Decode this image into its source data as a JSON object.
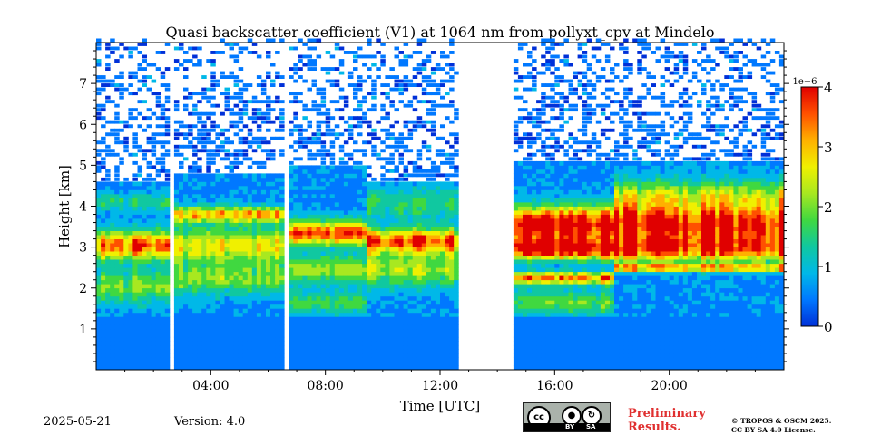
{
  "chart_data": {
    "type": "heatmap",
    "title": "Quasi backscatter coefficient (V1) at 1064 nm from pollyxt_cpv at Mindelo",
    "xlabel": "Time [UTC]",
    "ylabel": "Height [km]",
    "xlim_hours": [
      0,
      24
    ],
    "ylim_km": [
      0,
      8
    ],
    "x_ticks": [
      {
        "value": 4,
        "label": "04:00"
      },
      {
        "value": 8,
        "label": "08:00"
      },
      {
        "value": 12,
        "label": "12:00"
      },
      {
        "value": 16,
        "label": "16:00"
      },
      {
        "value": 20,
        "label": "20:00"
      }
    ],
    "y_ticks": [
      {
        "value": 1,
        "label": "1"
      },
      {
        "value": 2,
        "label": "2"
      },
      {
        "value": 3,
        "label": "3"
      },
      {
        "value": 4,
        "label": "4"
      },
      {
        "value": 5,
        "label": "5"
      },
      {
        "value": 6,
        "label": "6"
      },
      {
        "value": 7,
        "label": "7"
      }
    ],
    "colorbar": {
      "range": [
        0,
        4
      ],
      "multiplier": "1e−6",
      "ticks": [
        {
          "value": 0,
          "label": "0"
        },
        {
          "value": 1,
          "label": "1"
        },
        {
          "value": 2,
          "label": "2"
        },
        {
          "value": 3,
          "label": "3"
        },
        {
          "value": 4,
          "label": "4"
        }
      ],
      "colors": [
        "#0030d8",
        "#0078ff",
        "#00b8e8",
        "#10c8a0",
        "#40d840",
        "#a8e820",
        "#f0f000",
        "#ffb000",
        "#ff5000",
        "#e00000"
      ]
    },
    "data_gaps_hours": [
      [
        2.45,
        2.62
      ],
      [
        6.5,
        6.68
      ],
      [
        12.55,
        14.55
      ]
    ],
    "bands": [
      {
        "start": 0,
        "end": 2.45,
        "top": 4.6,
        "layers": [
          {
            "h": 3.0,
            "w": 0.35,
            "v": 3.0
          },
          {
            "h": 2.0,
            "w": 0.4,
            "v": 1.4
          },
          {
            "h": 4.05,
            "w": 0.2,
            "v": 0.9
          }
        ]
      },
      {
        "start": 2.62,
        "end": 6.5,
        "top": 4.75,
        "layers": [
          {
            "h": 3.0,
            "w": 0.4,
            "v": 2.0
          },
          {
            "h": 3.75,
            "w": 0.2,
            "v": 2.4
          },
          {
            "h": 2.2,
            "w": 0.4,
            "v": 1.4
          }
        ]
      },
      {
        "start": 6.68,
        "end": 9.3,
        "top": 4.9,
        "layers": [
          {
            "h": 3.3,
            "w": 0.3,
            "v": 2.9
          },
          {
            "h": 2.4,
            "w": 0.35,
            "v": 1.5
          },
          {
            "h": 1.6,
            "w": 0.25,
            "v": 1.1
          }
        ]
      },
      {
        "start": 9.3,
        "end": 12.55,
        "top": 4.6,
        "layers": [
          {
            "h": 3.1,
            "w": 0.3,
            "v": 3.0
          },
          {
            "h": 2.4,
            "w": 0.4,
            "v": 1.6
          },
          {
            "h": 4.0,
            "w": 0.4,
            "v": 0.9
          }
        ]
      },
      {
        "start": 14.55,
        "end": 18.0,
        "top": 5.0,
        "layers": [
          {
            "h": 3.5,
            "w": 0.45,
            "v": 3.6
          },
          {
            "h": 2.9,
            "w": 0.25,
            "v": 3.1
          },
          {
            "h": 2.2,
            "w": 0.15,
            "v": 2.6
          },
          {
            "h": 1.6,
            "w": 0.3,
            "v": 1.2
          }
        ]
      },
      {
        "start": 18.0,
        "end": 24,
        "top": 5.0,
        "layers": [
          {
            "h": 3.5,
            "w": 0.45,
            "v": 3.4
          },
          {
            "h": 2.9,
            "w": 0.3,
            "v": 2.8
          },
          {
            "h": 2.45,
            "w": 0.1,
            "v": 2.5
          },
          {
            "h": 4.2,
            "w": 0.4,
            "v": 1.7
          }
        ]
      }
    ]
  },
  "footer": {
    "date": "2025-05-21",
    "version": "Version: 4.0",
    "preliminary_line1": "Preliminary",
    "preliminary_line2": "Results.",
    "copyright_line1": "© TROPOS & OSCM 2025.",
    "copyright_line2": "CC BY SA 4.0 License.",
    "license_badge": {
      "cc": "cc",
      "by": "BY",
      "sa": "SA"
    }
  },
  "icons": {
    "license": "creative-commons-by-sa-icon"
  }
}
